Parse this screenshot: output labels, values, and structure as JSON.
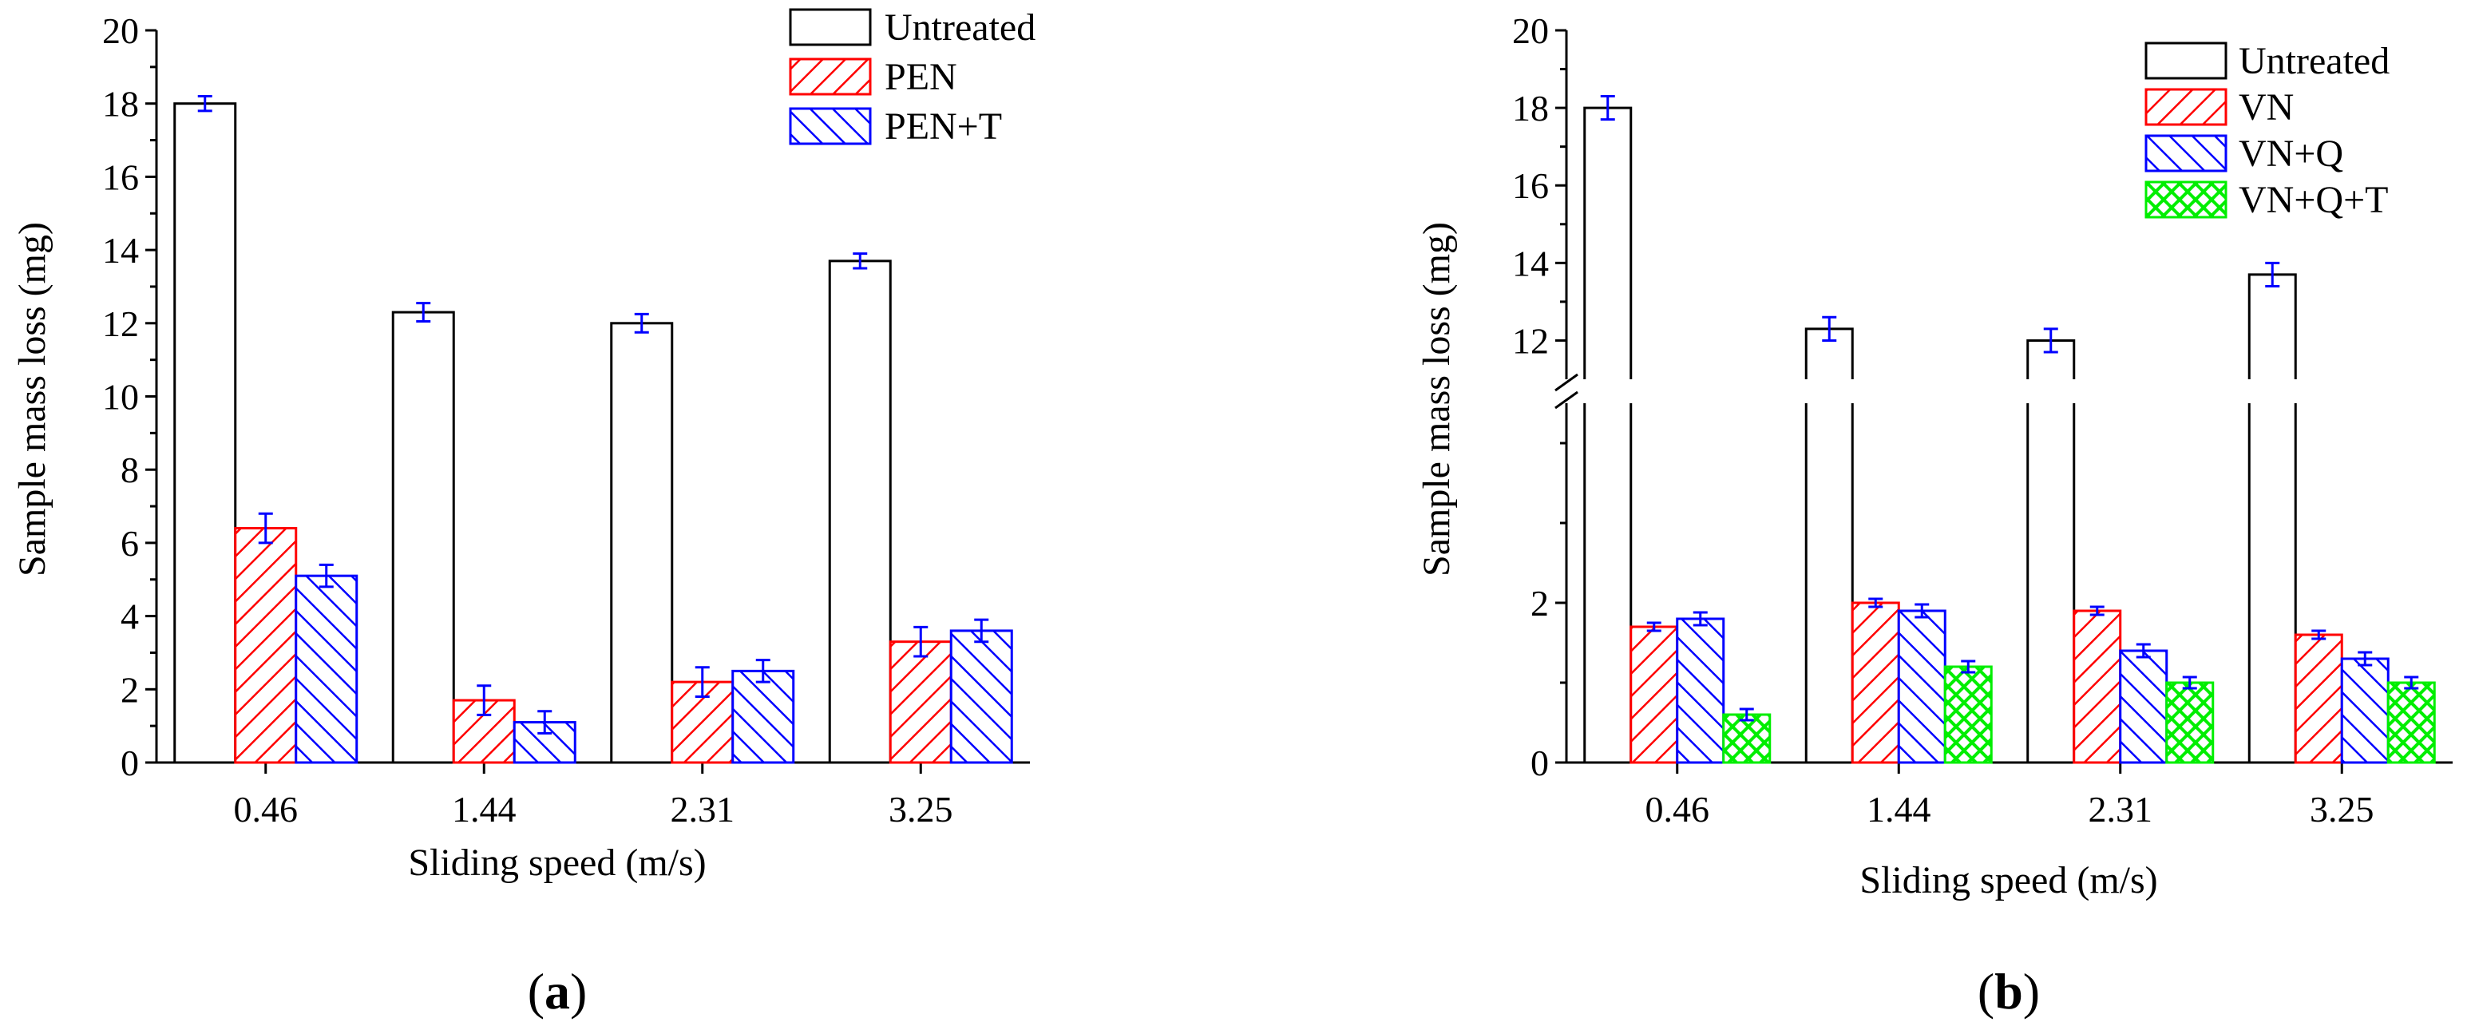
{
  "chart_data": [
    {
      "type": "bar",
      "panel_label": "(a)",
      "xlabel": "Sliding speed (m/s)",
      "ylabel": "Sample mass loss (mg)",
      "ylim": [
        0,
        20
      ],
      "yticks": [
        "0",
        "2",
        "4",
        "6",
        "8",
        "10",
        "12",
        "14",
        "16",
        "18",
        "20"
      ],
      "categories": [
        "0.46",
        "1.44",
        "2.31",
        "3.25"
      ],
      "legend_position": "top-right",
      "series": [
        {
          "name": "Untreated",
          "pattern": "open",
          "color": "#000000",
          "values": [
            18.0,
            12.3,
            12.0,
            13.7
          ],
          "errors": [
            0.2,
            0.25,
            0.25,
            0.2
          ]
        },
        {
          "name": "PEN",
          "pattern": "hatch-right",
          "color": "#ff0000",
          "values": [
            6.4,
            1.7,
            2.2,
            3.3
          ],
          "errors": [
            0.4,
            0.4,
            0.4,
            0.4
          ]
        },
        {
          "name": "PEN+T",
          "pattern": "hatch-left",
          "color": "#0000ff",
          "values": [
            5.1,
            1.1,
            2.5,
            3.6
          ],
          "errors": [
            0.3,
            0.3,
            0.3,
            0.3
          ]
        }
      ]
    },
    {
      "type": "bar",
      "panel_label": "(b)",
      "xlabel": "Sliding speed (m/s)",
      "ylabel": "Sample mass loss (mg)",
      "axis_break": true,
      "lower_ylim": [
        0,
        4.5
      ],
      "upper_ylim": [
        11,
        20
      ],
      "yticks_lower": [
        "0",
        "2"
      ],
      "yticks_upper": [
        "12",
        "14",
        "16",
        "18",
        "20"
      ],
      "categories": [
        "0.46",
        "1.44",
        "2.31",
        "3.25"
      ],
      "legend_position": "top-right",
      "series": [
        {
          "name": "Untreated",
          "pattern": "open",
          "color": "#000000",
          "values": [
            18.0,
            12.3,
            12.0,
            13.7
          ],
          "errors": [
            0.3,
            0.3,
            0.3,
            0.3
          ]
        },
        {
          "name": "VN",
          "pattern": "hatch-right",
          "color": "#ff0000",
          "values": [
            1.7,
            2.0,
            1.9,
            1.6
          ],
          "errors": [
            0.05,
            0.05,
            0.05,
            0.05
          ]
        },
        {
          "name": "VN+Q",
          "pattern": "hatch-left",
          "color": "#0000ff",
          "values": [
            1.8,
            1.9,
            1.4,
            1.3
          ],
          "errors": [
            0.08,
            0.08,
            0.08,
            0.08
          ]
        },
        {
          "name": "VN+Q+T",
          "pattern": "crosshatch",
          "color": "#00ee00",
          "values": [
            0.6,
            1.2,
            1.0,
            1.0
          ],
          "errors": [
            0.07,
            0.07,
            0.07,
            0.07
          ]
        }
      ]
    }
  ]
}
